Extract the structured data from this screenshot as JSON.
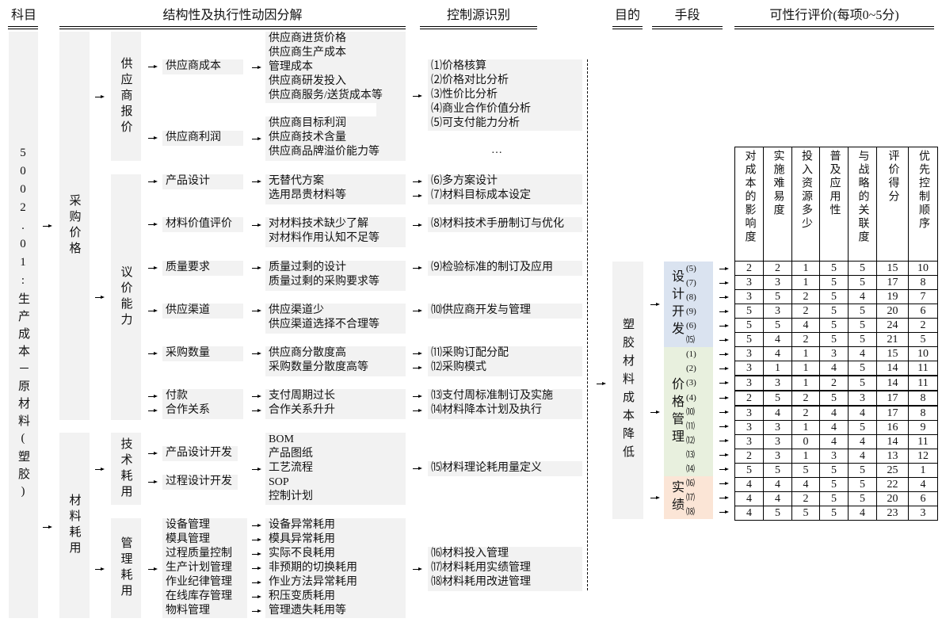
{
  "headers": {
    "subject": "科目",
    "decomposition": "结构性及执行性动因分解",
    "control": "控制源识别",
    "goal": "目的",
    "means": "手段",
    "evaluation": "可性行评价(每项0~5分)"
  },
  "subject": "5002.01:生产成本－原材料(塑胶)",
  "level1": [
    "采购价格",
    "材料耗用"
  ],
  "level2": [
    "供应商报价",
    "议价能力",
    "技术耗用",
    "管理耗用"
  ],
  "level3": [
    [
      "供应商成本"
    ],
    [
      "供应商利润"
    ],
    [
      "产品设计"
    ],
    [
      "材料价值评价"
    ],
    [
      "质量要求"
    ],
    [
      "供应渠道"
    ],
    [
      "采购数量"
    ],
    [
      "付款",
      "合作关系"
    ],
    [
      "产品设计开发"
    ],
    [
      "过程设计开发"
    ],
    [
      "设备管理",
      "模具管理",
      "过程质量控制",
      "生产计划管理",
      "作业纪律管理",
      "在线库存管理",
      "物料管理"
    ]
  ],
  "level4": [
    [
      "供应商进货价格",
      "供应商生产成本",
      "管理成本",
      "供应商研发投入",
      "供应商服务/送货成本等"
    ],
    [
      "供应商目标利润",
      "供应商技术含量",
      "供应商品牌溢价能力等"
    ],
    [
      "无替代方案",
      "选用昂贵材料等"
    ],
    [
      "对材料技术缺少了解",
      "对材料作用认知不足等"
    ],
    [
      "质量过剩的设计",
      "质量过剩的采购要求等"
    ],
    [
      "供应渠道少",
      "供应渠道选择不合理等"
    ],
    [
      "供应商分散度高",
      "采购数量分散度高等"
    ],
    [
      "支付周期过长",
      "合作关系升升"
    ],
    [
      "BOM",
      "产品图纸",
      "工艺流程",
      "SOP",
      "控制计划"
    ],
    [
      "设备异常耗用",
      "模具异常耗用",
      "实际不良耗用",
      "非预期的切换耗用",
      "作业方法异常耗用",
      "积压变质耗用",
      "管理遗失耗用等"
    ]
  ],
  "controls": [
    [
      "⑴价格核算",
      "⑵价格对比分析",
      "⑶性价比分析",
      "⑷商业合作价值分析",
      "⑸可支付能力分析"
    ],
    [
      "⑹多方案设计",
      "⑺材料目标成本设定"
    ],
    [
      "⑻材料技术手册制订与优化"
    ],
    [
      "⑼检验标准的制订及应用"
    ],
    [
      "⑽供应商开发与管理"
    ],
    [
      "⑾采购订配分配",
      "⑿采购模式"
    ],
    [
      "⒀支付周标准制订及实施",
      "⒁材料降本计划及执行"
    ],
    [
      "⒂材料理论耗用量定义"
    ],
    [
      "⒃材料投入管理",
      "⒄材料耗用实绩管理",
      "⒅材料耗用改进管理"
    ]
  ],
  "ellipsis": "…",
  "goal": "塑胶材料成本降低",
  "means": [
    {
      "label": "设计开发",
      "color": "#dae3f0",
      "items": [
        "(5)",
        "(7)",
        "(8)",
        "(9)",
        "(6)",
        "⒂"
      ]
    },
    {
      "label": "价格管理",
      "color": "#e8f0de",
      "items": [
        "(1)",
        "(2)",
        "(3)",
        "(4)",
        "⑽",
        "⑾",
        "⑿",
        "⒀",
        "⒁"
      ]
    },
    {
      "label": "实绩",
      "color": "#fbe5d6",
      "items": [
        "⒃",
        "⒄",
        "⒅"
      ]
    }
  ],
  "table": {
    "columns": [
      "对成本的影响度",
      "实施难易度",
      "投入资源多少",
      "普及应用性",
      "与战略的关联度",
      "评价得分",
      "优先控制顺序"
    ],
    "rows": [
      [
        2,
        2,
        1,
        5,
        5,
        15,
        10
      ],
      [
        3,
        3,
        1,
        5,
        5,
        17,
        8
      ],
      [
        3,
        5,
        2,
        5,
        4,
        19,
        7
      ],
      [
        5,
        3,
        2,
        5,
        5,
        20,
        6
      ],
      [
        5,
        5,
        4,
        5,
        5,
        24,
        2
      ],
      [
        5,
        4,
        2,
        5,
        5,
        21,
        5
      ],
      [
        3,
        4,
        1,
        3,
        4,
        15,
        10
      ],
      [
        3,
        1,
        1,
        4,
        5,
        14,
        11
      ],
      [
        3,
        3,
        1,
        2,
        5,
        14,
        11
      ],
      [
        2,
        5,
        2,
        5,
        3,
        17,
        8
      ],
      [
        3,
        4,
        2,
        4,
        4,
        17,
        8
      ],
      [
        3,
        3,
        1,
        4,
        5,
        16,
        9
      ],
      [
        3,
        3,
        0,
        4,
        4,
        14,
        11
      ],
      [
        2,
        3,
        1,
        3,
        4,
        13,
        12
      ],
      [
        5,
        5,
        5,
        5,
        5,
        25,
        1
      ],
      [
        4,
        4,
        4,
        5,
        5,
        22,
        4
      ],
      [
        4,
        4,
        2,
        5,
        5,
        20,
        6
      ],
      [
        4,
        5,
        5,
        5,
        4,
        23,
        3
      ]
    ]
  }
}
